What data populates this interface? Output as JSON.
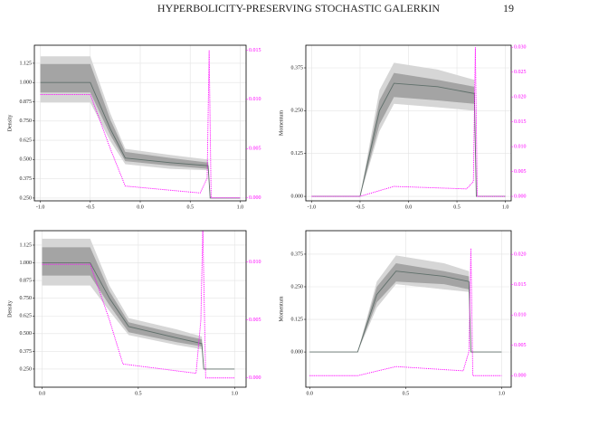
{
  "header": {
    "title": "HYPERBOLICITY-PRESERVING STOCHASTIC GALERKIN",
    "page_number": "19"
  },
  "chart_data": [
    {
      "type": "line",
      "ylabel": "Density",
      "x": [
        -1,
        -0.5,
        -0.3,
        -0.15,
        0.3,
        0.68,
        0.7,
        1
      ],
      "bands": [
        {
          "color": "#d6d6d6",
          "lower": [
            0.87,
            0.87,
            0.62,
            0.47,
            0.44,
            0.43,
            0.25,
            0.25
          ],
          "upper": [
            1.17,
            1.17,
            0.8,
            0.57,
            0.53,
            0.5,
            0.25,
            0.25
          ]
        },
        {
          "color": "#a4a4a4",
          "lower": [
            0.935,
            0.935,
            0.66,
            0.49,
            0.46,
            0.44,
            0.25,
            0.25
          ],
          "upper": [
            1.12,
            1.12,
            0.76,
            0.55,
            0.51,
            0.48,
            0.25,
            0.25
          ]
        }
      ],
      "series": [
        {
          "color": "#5f6f6a",
          "values": [
            1.0,
            1.0,
            0.7,
            0.51,
            0.48,
            0.46,
            0.25,
            0.25
          ]
        },
        {
          "color": "#ff00ff",
          "axis": "y2",
          "x": [
            -1,
            -0.5,
            -0.3,
            -0.15,
            0.6,
            0.67,
            0.69,
            0.71,
            1
          ],
          "values": [
            0.0105,
            0.0105,
            0.005,
            0.0012,
            0.0005,
            0.002,
            0.015,
            0,
            0
          ]
        }
      ],
      "xlim": [
        -1.06,
        1.06
      ],
      "xticks": [
        {
          "value": -1,
          "label": "-1.0"
        },
        -0.5,
        {
          "value": 0,
          "label": "0.0"
        },
        0.5,
        {
          "value": 1,
          "label": "1.0"
        }
      ],
      "ylim": [
        0.232,
        1.242
      ],
      "yticks": [
        {
          "value": 0.25,
          "label": "0.250"
        },
        0.375,
        {
          "value": 0.5,
          "label": "0.500"
        },
        0.625,
        {
          "value": 0.75,
          "label": "0.750"
        },
        0.875,
        {
          "value": 1,
          "label": "1.000"
        },
        1.125
      ],
      "y2lim": [
        -0.0003,
        0.0155
      ],
      "y2ticks": [
        {
          "value": 0,
          "label": "0.000"
        },
        0.005,
        {
          "value": 0.01,
          "label": "0.010"
        },
        0.015
      ],
      "grid": true
    },
    {
      "type": "line",
      "ylabel": "Momentum",
      "x": [
        -1,
        -0.5,
        -0.3,
        -0.15,
        0.3,
        0.68,
        0.7,
        1
      ],
      "bands": [
        {
          "color": "#d6d6d6",
          "lower": [
            0,
            0,
            0.19,
            0.27,
            0.26,
            0.25,
            0,
            0
          ],
          "upper": [
            0,
            0,
            0.31,
            0.39,
            0.37,
            0.34,
            0,
            0
          ]
        },
        {
          "color": "#a4a4a4",
          "lower": [
            0,
            0,
            0.21,
            0.29,
            0.28,
            0.27,
            0,
            0
          ],
          "upper": [
            0,
            0,
            0.28,
            0.36,
            0.34,
            0.32,
            0,
            0
          ]
        }
      ],
      "series": [
        {
          "color": "#5f6f6a",
          "values": [
            0,
            0,
            0.25,
            0.33,
            0.32,
            0.3,
            0,
            0
          ]
        },
        {
          "color": "#ff00ff",
          "axis": "y2",
          "x": [
            -1,
            -0.5,
            -0.15,
            0.6,
            0.67,
            0.69,
            0.71,
            1
          ],
          "values": [
            0,
            0,
            0.002,
            0.0015,
            0.003,
            0.03,
            0,
            0
          ]
        }
      ],
      "xlim": [
        -1.06,
        1.06
      ],
      "xticks": [
        {
          "value": -1,
          "label": "-1.0"
        },
        -0.5,
        {
          "value": 0,
          "label": "0.0"
        },
        0.5,
        {
          "value": 1,
          "label": "1.0"
        }
      ],
      "ylim": [
        -0.013,
        0.441
      ],
      "yticks": [
        {
          "value": 0,
          "label": "0.000"
        },
        0.125,
        {
          "value": 0.25,
          "label": "0.250"
        },
        0.375
      ],
      "y2lim": [
        -0.0009,
        0.0304
      ],
      "y2ticks": [
        {
          "value": 0,
          "label": "0.000"
        },
        0.005,
        {
          "value": 0.01,
          "label": "0.010"
        },
        0.015,
        {
          "value": 0.02,
          "label": "0.020"
        },
        0.025,
        {
          "value": 0.03,
          "label": "0.030"
        }
      ],
      "grid": true
    },
    {
      "type": "line",
      "ylabel": "Density",
      "x": [
        0,
        0.25,
        0.35,
        0.45,
        0.7,
        0.83,
        0.84,
        1
      ],
      "bands": [
        {
          "color": "#d6d6d6",
          "lower": [
            0.84,
            0.84,
            0.66,
            0.49,
            0.42,
            0.39,
            0.25,
            0.25
          ],
          "upper": [
            1.17,
            1.17,
            0.84,
            0.61,
            0.53,
            0.48,
            0.25,
            0.25
          ]
        },
        {
          "color": "#a4a4a4",
          "lower": [
            0.91,
            0.91,
            0.7,
            0.51,
            0.44,
            0.41,
            0.25,
            0.25
          ],
          "upper": [
            1.11,
            1.11,
            0.8,
            0.58,
            0.5,
            0.46,
            0.25,
            0.25
          ]
        }
      ],
      "series": [
        {
          "color": "#5f6f6a",
          "values": [
            1.0,
            1.0,
            0.75,
            0.55,
            0.47,
            0.43,
            0.25,
            0.25
          ]
        },
        {
          "color": "#ff00ff",
          "axis": "y2",
          "x": [
            0,
            0.25,
            0.35,
            0.42,
            0.8,
            0.825,
            0.835,
            0.85,
            1
          ],
          "values": [
            0.0098,
            0.0098,
            0.005,
            0.0012,
            0.0004,
            0.005,
            0.013,
            0,
            0
          ]
        }
      ],
      "xlim": [
        -0.04,
        1.06
      ],
      "xticks": [
        {
          "value": 0,
          "label": "0.0"
        },
        0.5,
        {
          "value": 1,
          "label": "1.0"
        }
      ],
      "ylim": [
        0.122,
        1.227
      ],
      "yticks": [
        {
          "value": 0.25,
          "label": "0.250"
        },
        0.375,
        {
          "value": 0.5,
          "label": "0.500"
        },
        0.625,
        {
          "value": 0.75,
          "label": "0.750"
        },
        0.875,
        {
          "value": 1,
          "label": "1.000"
        },
        1.125
      ],
      "y2lim": [
        -0.0008,
        0.0127
      ],
      "y2ticks": [
        {
          "value": 0,
          "label": "0.000"
        },
        0.005,
        {
          "value": 0.01,
          "label": "0.010"
        }
      ],
      "grid": true
    },
    {
      "type": "line",
      "ylabel": "Momentum",
      "x": [
        0,
        0.25,
        0.35,
        0.45,
        0.7,
        0.83,
        0.84,
        1
      ],
      "bands": [
        {
          "color": "#d6d6d6",
          "lower": [
            0,
            0,
            0.17,
            0.26,
            0.24,
            0.23,
            0,
            0
          ],
          "upper": [
            0,
            0,
            0.27,
            0.37,
            0.34,
            0.31,
            0,
            0
          ]
        },
        {
          "color": "#a4a4a4",
          "lower": [
            0,
            0,
            0.19,
            0.27,
            0.26,
            0.24,
            0,
            0
          ],
          "upper": [
            0,
            0,
            0.25,
            0.34,
            0.31,
            0.29,
            0,
            0
          ]
        }
      ],
      "series": [
        {
          "color": "#5f6f6a",
          "values": [
            0,
            0,
            0.22,
            0.31,
            0.29,
            0.27,
            0,
            0
          ]
        },
        {
          "color": "#ff00ff",
          "axis": "y2",
          "x": [
            0,
            0.25,
            0.45,
            0.8,
            0.83,
            0.84,
            0.85,
            1
          ],
          "values": [
            0,
            0,
            0.0015,
            0.0008,
            0.004,
            0.021,
            0,
            0
          ]
        }
      ],
      "xlim": [
        -0.02,
        1.05
      ],
      "xticks": [
        {
          "value": 0,
          "label": "0.0"
        },
        0.5,
        {
          "value": 1,
          "label": "1.0"
        }
      ],
      "ylim": [
        -0.135,
        0.465
      ],
      "yticks": [
        {
          "value": 0,
          "label": "0.000"
        },
        0.125,
        {
          "value": 0.25,
          "label": "0.250"
        },
        0.375
      ],
      "y2lim": [
        -0.0019,
        0.0239
      ],
      "y2ticks": [
        {
          "value": 0,
          "label": "0.000"
        },
        0.005,
        {
          "value": 0.01,
          "label": "0.010"
        },
        0.015,
        {
          "value": 0.02,
          "label": "0.020"
        }
      ],
      "grid": true
    }
  ]
}
